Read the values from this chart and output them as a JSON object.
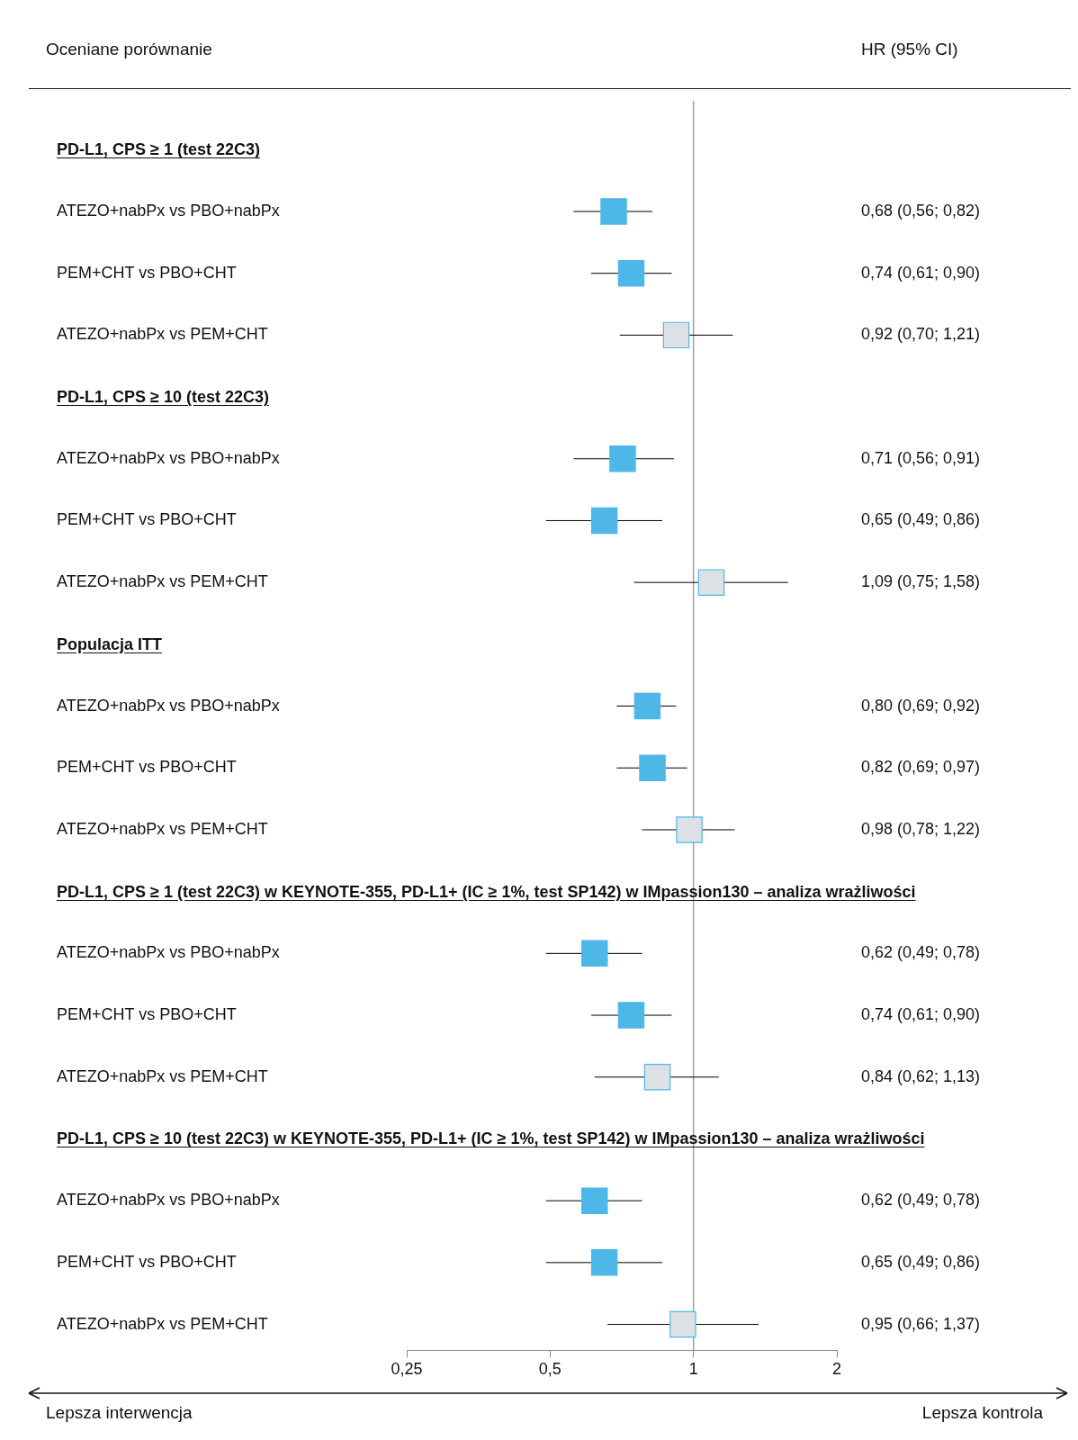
{
  "chart_data": {
    "type": "scatter",
    "orientation": "horizontal",
    "log": "x",
    "categories": [
      "PD-L1, CPS ≥ 1 (test 22C3)",
      "ATEZO+nabPx vs PBO+nabPx",
      "PEM+CHT vs PBO+CHT",
      "ATEZO+nabPx vs PEM+CHT",
      "PD-L1, CPS ≥ 10 (test 22C3)",
      "ATEZO+nabPx vs PBO+nabPx",
      "PEM+CHT vs PBO+CHT",
      "ATEZO+nabPx vs PEM+CHT",
      "Populacja ITT",
      "ATEZO+nabPx vs PBO+nabPx",
      "PEM+CHT vs PBO+CHT",
      "ATEZO+nabPx vs PEM+CHT",
      "PD-L1, CPS ≥ 1 (test 22C3) w KEYNOTE-355, PD-L1+ (IC ≥ 1%, test SP142) w IMpassion130 – analiza wrażliwości",
      "ATEZO+nabPx vs PBO+nabPx",
      "PEM+CHT vs PBO+CHT",
      "ATEZO+nabPx vs PEM+CHT",
      "PD-L1, CPS ≥ 10 (test 22C3) w KEYNOTE-355, PD-L1+ (IC ≥ 1%, test SP142) w IMpassion130 – analiza wrażliwości",
      "ATEZO+nabPx vs PBO+nabPx",
      "PEM+CHT vs PBO+CHT",
      "ATEZO+nabPx vs PEM+CHT"
    ],
    "series": [
      {
        "color": "#4db8e8",
        "values": [
          null,
          0.68,
          0.74,
          0.92,
          null,
          0.71,
          0.65,
          1.09,
          null,
          0.8,
          0.82,
          0.98,
          null,
          0.62,
          0.74,
          0.84,
          null,
          0.62,
          0.65,
          0.95
        ],
        "errors": [
          null,
          [
            0.56,
            0.82
          ],
          [
            0.61,
            0.9
          ],
          [
            0.7,
            1.21
          ],
          null,
          [
            0.56,
            0.91
          ],
          [
            0.49,
            0.86
          ],
          [
            0.75,
            1.58
          ],
          null,
          [
            0.69,
            0.92
          ],
          [
            0.69,
            0.97
          ],
          [
            0.78,
            1.22
          ],
          null,
          [
            0.49,
            0.78
          ],
          [
            0.61,
            0.9
          ],
          [
            0.62,
            1.13
          ],
          null,
          [
            0.49,
            0.78
          ],
          [
            0.49,
            0.86
          ],
          [
            0.66,
            1.37
          ]
        ],
        "colors": [
          null,
          "#4db8e8",
          "#4db8e8",
          "#dde1e6",
          null,
          "#4db8e8",
          "#4db8e8",
          "#dde1e6",
          null,
          "#4db8e8",
          "#4db8e8",
          "#dde1e6",
          null,
          "#4db8e8",
          "#4db8e8",
          "#dde1e6",
          null,
          "#4db8e8",
          "#4db8e8",
          "#dde1e6"
        ],
        "value_labels": [
          null,
          "0,68 (0,56; 0,82)",
          "0,74 (0,61; 0,90)",
          "0,92 (0,70; 1,21)",
          null,
          "0,71 (0,56; 0,91)",
          "0,65 (0,49; 0,86)",
          "1,09 (0,75; 1,58)",
          null,
          "0,80 (0,69; 0,92)",
          "0,82 (0,69; 0,97)",
          "0,98 (0,78; 1,22)",
          null,
          "0,62 (0,49; 0,78)",
          "0,74 (0,61; 0,90)",
          "0,84 (0,62; 1,13)",
          null,
          "0,62 (0,49; 0,78)",
          "0,65 (0,49; 0,86)",
          "0,95 (0,66; 1,37)"
        ]
      }
    ],
    "xlim": [
      0.25,
      2
    ],
    "xticks": [
      {
        "value": 0.25,
        "label": "0,25"
      },
      {
        "value": 0.5,
        "label": "0,5"
      },
      1,
      2
    ],
    "ref_lines": [
      {
        "axis": "x",
        "value": 1,
        "color": "#a0a0a0"
      }
    ],
    "marker": "square",
    "grid": false,
    "tick_labels": "x",
    "annotations": [
      "Oceniane porównanie",
      "HR (95% CI)",
      "Lepsza interwencja",
      "Lepsza kontrola"
    ]
  }
}
